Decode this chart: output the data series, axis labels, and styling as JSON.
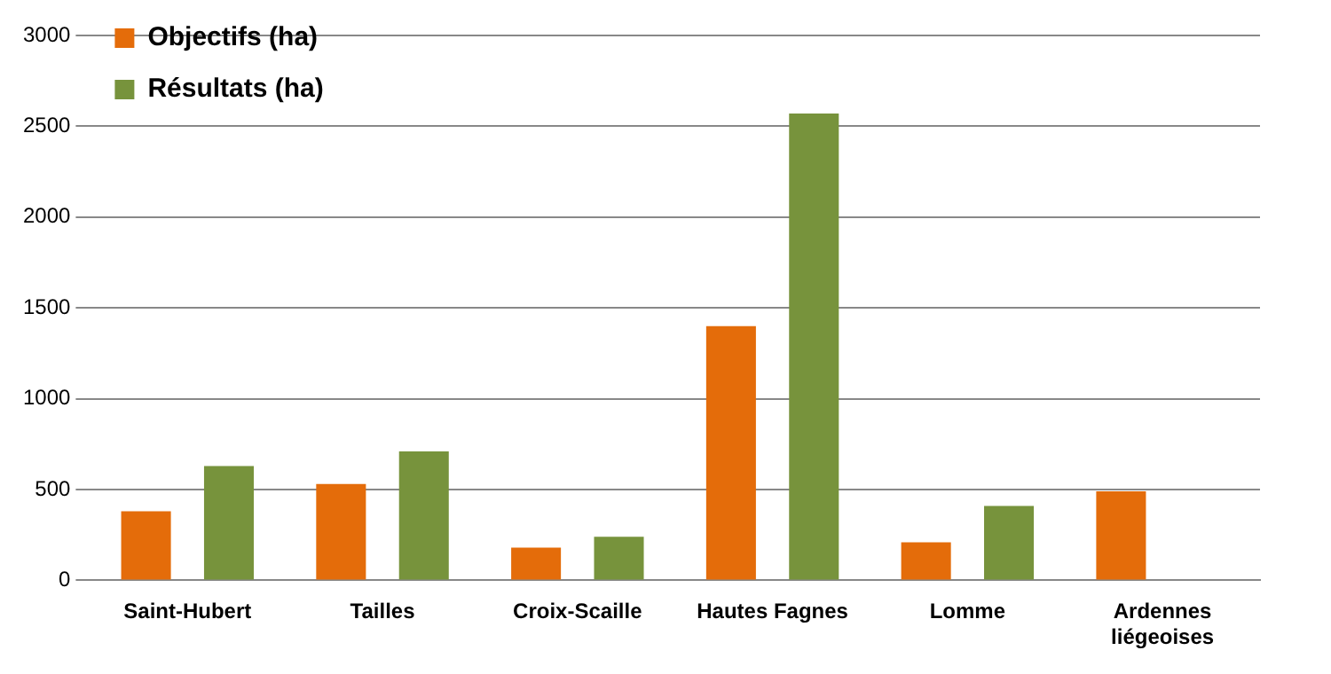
{
  "chart_data": {
    "type": "bar",
    "categories": [
      "Saint-Hubert",
      "Tailles",
      "Croix-Scaille",
      "Hautes Fagnes",
      "Lomme",
      "Ardennes liégeoises"
    ],
    "series": [
      {
        "name": "Objectifs (ha)",
        "color": "#e46c0a",
        "values": [
          380,
          530,
          180,
          1400,
          210,
          490
        ]
      },
      {
        "name": "Résultats (ha)",
        "color": "#77933c",
        "values": [
          630,
          710,
          240,
          2570,
          410,
          null
        ]
      }
    ],
    "ylim": [
      0,
      3000
    ],
    "yticks": [
      0,
      500,
      1000,
      1500,
      2000,
      2500,
      3000
    ],
    "grid": "y",
    "legend": "top left"
  }
}
